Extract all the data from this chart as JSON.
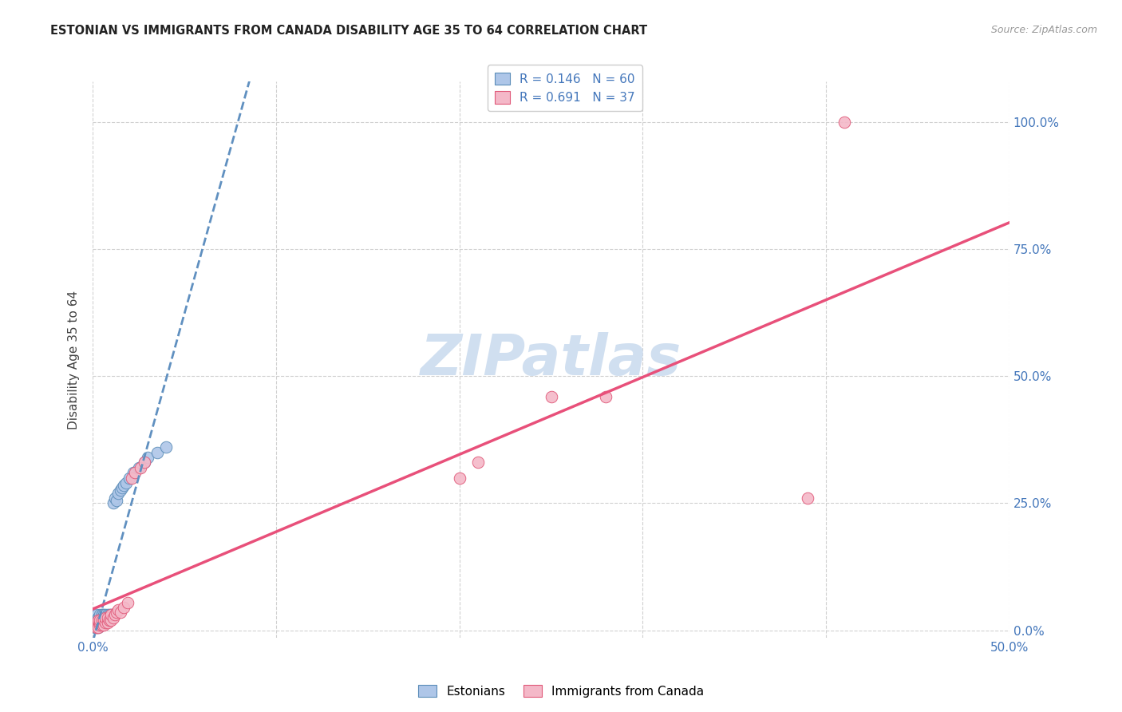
{
  "title": "ESTONIAN VS IMMIGRANTS FROM CANADA DISABILITY AGE 35 TO 64 CORRELATION CHART",
  "source": "Source: ZipAtlas.com",
  "ylabel": "Disability Age 35 to 64",
  "legend_label1": "Estonians",
  "legend_label2": "Immigrants from Canada",
  "r1": 0.146,
  "n1": 60,
  "r2": 0.691,
  "n2": 37,
  "xlim": [
    0.0,
    0.5
  ],
  "ylim": [
    -0.015,
    1.08
  ],
  "xticks": [
    0.0,
    0.1,
    0.2,
    0.3,
    0.4,
    0.5
  ],
  "xticklabels": [
    "0.0%",
    "",
    "",
    "",
    "",
    "50.0%"
  ],
  "yticks": [
    0.0,
    0.25,
    0.5,
    0.75,
    1.0
  ],
  "yticklabels": [
    "0.0%",
    "25.0%",
    "50.0%",
    "75.0%",
    "100.0%"
  ],
  "color_estonian_fill": "#aec6e8",
  "color_estonian_edge": "#5b8db8",
  "color_immigrant_fill": "#f4b8c8",
  "color_immigrant_edge": "#e05878",
  "color_line_estonian": "#6090c0",
  "color_line_immigrant": "#e8507a",
  "background": "#ffffff",
  "estonian_x": [
    0.001,
    0.001,
    0.001,
    0.002,
    0.002,
    0.002,
    0.002,
    0.002,
    0.003,
    0.003,
    0.003,
    0.003,
    0.003,
    0.003,
    0.003,
    0.003,
    0.004,
    0.004,
    0.004,
    0.004,
    0.004,
    0.004,
    0.004,
    0.005,
    0.005,
    0.005,
    0.005,
    0.005,
    0.005,
    0.005,
    0.005,
    0.005,
    0.006,
    0.006,
    0.006,
    0.006,
    0.006,
    0.007,
    0.007,
    0.007,
    0.008,
    0.008,
    0.009,
    0.009,
    0.01,
    0.011,
    0.012,
    0.013,
    0.014,
    0.015,
    0.016,
    0.017,
    0.018,
    0.02,
    0.022,
    0.025,
    0.028,
    0.03,
    0.035,
    0.04
  ],
  "estonian_y": [
    0.02,
    0.01,
    0.005,
    0.03,
    0.015,
    0.01,
    0.005,
    0.02,
    0.015,
    0.02,
    0.025,
    0.01,
    0.005,
    0.015,
    0.02,
    0.025,
    0.02,
    0.015,
    0.025,
    0.03,
    0.01,
    0.015,
    0.02,
    0.015,
    0.02,
    0.025,
    0.03,
    0.01,
    0.015,
    0.02,
    0.025,
    0.03,
    0.02,
    0.025,
    0.015,
    0.02,
    0.03,
    0.02,
    0.025,
    0.03,
    0.025,
    0.03,
    0.025,
    0.03,
    0.03,
    0.25,
    0.26,
    0.255,
    0.27,
    0.275,
    0.28,
    0.285,
    0.29,
    0.3,
    0.31,
    0.32,
    0.33,
    0.34,
    0.35,
    0.36
  ],
  "immigrant_x": [
    0.001,
    0.002,
    0.002,
    0.003,
    0.003,
    0.003,
    0.004,
    0.004,
    0.004,
    0.005,
    0.005,
    0.006,
    0.006,
    0.007,
    0.007,
    0.008,
    0.008,
    0.009,
    0.01,
    0.01,
    0.011,
    0.012,
    0.013,
    0.014,
    0.015,
    0.017,
    0.019,
    0.021,
    0.023,
    0.026,
    0.028,
    0.2,
    0.21,
    0.25,
    0.28,
    0.39,
    0.41
  ],
  "immigrant_y": [
    0.01,
    0.005,
    0.015,
    0.01,
    0.02,
    0.005,
    0.01,
    0.015,
    0.02,
    0.01,
    0.02,
    0.01,
    0.02,
    0.015,
    0.025,
    0.015,
    0.025,
    0.02,
    0.02,
    0.03,
    0.025,
    0.03,
    0.035,
    0.04,
    0.035,
    0.045,
    0.055,
    0.3,
    0.31,
    0.32,
    0.33,
    0.3,
    0.33,
    0.46,
    0.46,
    0.26,
    1.0
  ],
  "watermark_text": "ZIPatlas",
  "watermark_color": "#d0dff0",
  "watermark_fontsize": 52
}
